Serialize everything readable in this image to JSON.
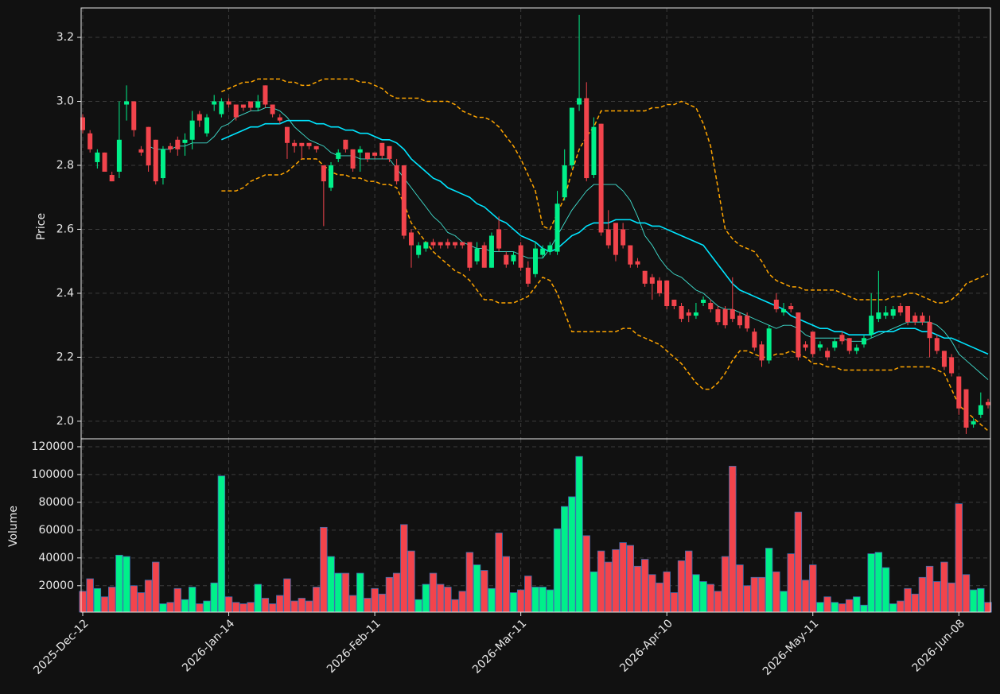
{
  "chart_data": {
    "type": "candlestick",
    "ylabel": "Price",
    "ylim": [
      1.945,
      3.292
    ],
    "yticks": [
      {
        "value": 2,
        "label": "2.0"
      },
      2.2,
      2.4,
      2.6,
      2.8,
      {
        "value": 3,
        "label": "3.0"
      },
      3.2
    ],
    "grid": true,
    "up_color": "#00f08a",
    "down_color": "#f2444c",
    "categories": [
      "2025-Dec-12",
      null,
      null,
      null,
      null,
      null,
      null,
      null,
      null,
      null,
      null,
      null,
      null,
      null,
      null,
      null,
      null,
      null,
      null,
      null,
      "2026-Jan-14",
      null,
      null,
      null,
      null,
      null,
      null,
      null,
      null,
      null,
      null,
      null,
      null,
      null,
      null,
      null,
      null,
      null,
      null,
      null,
      "2026-Feb-11",
      null,
      null,
      null,
      null,
      null,
      null,
      null,
      null,
      null,
      null,
      null,
      null,
      null,
      null,
      null,
      null,
      null,
      null,
      null,
      "2026-Mar-11",
      null,
      null,
      null,
      null,
      null,
      null,
      null,
      null,
      null,
      null,
      null,
      null,
      null,
      null,
      null,
      null,
      null,
      null,
      null,
      "2026-Apr-10",
      null,
      null,
      null,
      null,
      null,
      null,
      null,
      null,
      null,
      null,
      null,
      null,
      null,
      null,
      null,
      null,
      null,
      null,
      null,
      "2026-May-11",
      null,
      null,
      null,
      null,
      null,
      null,
      null,
      null,
      null,
      null,
      null,
      null,
      null,
      null,
      null,
      null,
      null,
      null,
      null,
      "2026-Jun-08",
      null,
      null,
      null,
      null
    ],
    "open": [
      2.95,
      2.9,
      2.81,
      2.84,
      2.77,
      2.78,
      2.99,
      3.0,
      2.85,
      2.92,
      2.88,
      2.76,
      2.86,
      2.88,
      2.87,
      2.88,
      2.96,
      2.9,
      2.99,
      2.96,
      3.0,
      2.99,
      2.99,
      3.0,
      2.98,
      3.05,
      2.99,
      2.95,
      2.92,
      2.87,
      2.87,
      2.87,
      2.86,
      2.8,
      2.73,
      2.82,
      2.88,
      2.85,
      2.84,
      2.84,
      2.84,
      2.87,
      2.86,
      2.8,
      2.8,
      2.59,
      2.52,
      2.54,
      2.56,
      2.56,
      2.56,
      2.56,
      2.56,
      2.56,
      2.5,
      2.55,
      2.48,
      2.6,
      2.52,
      2.5,
      2.55,
      2.48,
      2.46,
      2.52,
      2.53,
      2.53,
      2.7,
      2.8,
      2.99,
      3.01,
      2.77,
      2.93,
      2.6,
      2.62,
      2.6,
      2.55,
      2.5,
      2.47,
      2.45,
      2.44,
      2.44,
      2.38,
      2.36,
      2.34,
      2.33,
      2.37,
      2.37,
      2.35,
      2.35,
      2.35,
      2.33,
      2.33,
      2.28,
      2.24,
      2.19,
      2.38,
      2.34,
      2.36,
      2.34,
      2.24,
      2.28,
      2.23,
      2.22,
      2.23,
      2.27,
      2.26,
      2.22,
      2.24,
      2.27,
      2.32,
      2.33,
      2.33,
      2.36,
      2.36,
      2.33,
      2.33,
      2.31,
      2.26,
      2.22,
      2.2,
      2.14,
      2.1,
      1.99,
      2.02,
      2.06
    ],
    "high": [
      2.96,
      2.91,
      2.85,
      2.84,
      2.78,
      3.0,
      3.05,
      3.0,
      2.86,
      2.92,
      2.88,
      2.86,
      2.87,
      2.89,
      2.9,
      2.97,
      2.97,
      2.96,
      3.02,
      3.01,
      3.01,
      2.99,
      2.99,
      3.0,
      3.02,
      3.05,
      2.99,
      2.96,
      2.92,
      2.88,
      2.87,
      2.87,
      2.86,
      2.8,
      2.81,
      2.85,
      2.88,
      2.85,
      2.86,
      2.84,
      2.84,
      2.87,
      2.86,
      2.82,
      2.8,
      2.6,
      2.56,
      2.56,
      2.57,
      2.56,
      2.57,
      2.56,
      2.56,
      2.56,
      2.56,
      2.56,
      2.59,
      2.64,
      2.53,
      2.53,
      2.56,
      2.5,
      2.56,
      2.55,
      2.56,
      2.72,
      2.85,
      2.98,
      3.27,
      3.06,
      2.95,
      2.93,
      2.66,
      2.62,
      2.62,
      2.55,
      2.51,
      2.47,
      2.46,
      2.45,
      2.44,
      2.38,
      2.37,
      2.35,
      2.37,
      2.39,
      2.38,
      2.36,
      2.36,
      2.45,
      2.34,
      2.34,
      2.29,
      2.25,
      2.3,
      2.4,
      2.37,
      2.37,
      2.34,
      2.25,
      2.28,
      2.25,
      2.23,
      2.26,
      2.28,
      2.26,
      2.24,
      2.27,
      2.4,
      2.47,
      2.36,
      2.36,
      2.37,
      2.36,
      2.34,
      2.34,
      2.33,
      2.27,
      2.22,
      2.21,
      2.14,
      2.1,
      2.01,
      2.09,
      2.07
    ],
    "low": [
      2.9,
      2.84,
      2.79,
      2.78,
      2.75,
      2.76,
      2.94,
      2.89,
      2.83,
      2.78,
      2.74,
      2.74,
      2.84,
      2.83,
      2.83,
      2.85,
      2.92,
      2.89,
      2.97,
      2.95,
      2.98,
      2.94,
      2.97,
      2.97,
      2.97,
      2.98,
      2.95,
      2.93,
      2.82,
      2.84,
      2.82,
      2.85,
      2.84,
      2.61,
      2.72,
      2.81,
      2.84,
      2.78,
      2.78,
      2.81,
      2.82,
      2.82,
      2.81,
      2.74,
      2.57,
      2.48,
      2.51,
      2.53,
      2.54,
      2.54,
      2.54,
      2.54,
      2.54,
      2.47,
      2.49,
      2.48,
      2.48,
      2.53,
      2.48,
      2.49,
      2.47,
      2.42,
      2.45,
      2.51,
      2.52,
      2.52,
      2.69,
      2.79,
      2.97,
      2.75,
      2.76,
      2.58,
      2.54,
      2.5,
      2.54,
      2.48,
      2.48,
      2.42,
      2.38,
      2.39,
      2.35,
      2.35,
      2.31,
      2.31,
      2.32,
      2.36,
      2.34,
      2.3,
      2.29,
      2.31,
      2.29,
      2.28,
      2.22,
      2.17,
      2.18,
      2.34,
      2.33,
      2.34,
      2.19,
      2.22,
      2.2,
      2.22,
      2.19,
      2.22,
      2.24,
      2.21,
      2.21,
      2.23,
      2.26,
      2.31,
      2.32,
      2.32,
      2.33,
      2.3,
      2.3,
      2.3,
      2.2,
      2.21,
      2.16,
      2.14,
      2.02,
      1.96,
      1.98,
      2.01,
      2.04
    ],
    "close": [
      2.91,
      2.85,
      2.84,
      2.78,
      2.75,
      2.88,
      3.0,
      2.91,
      2.84,
      2.8,
      2.75,
      2.85,
      2.85,
      2.85,
      2.88,
      2.94,
      2.94,
      2.95,
      3.0,
      3.0,
      2.99,
      2.95,
      2.98,
      2.98,
      3.0,
      2.99,
      2.96,
      2.94,
      2.87,
      2.86,
      2.86,
      2.86,
      2.85,
      2.75,
      2.8,
      2.84,
      2.85,
      2.79,
      2.85,
      2.82,
      2.83,
      2.83,
      2.82,
      2.75,
      2.58,
      2.55,
      2.55,
      2.56,
      2.55,
      2.55,
      2.55,
      2.55,
      2.55,
      2.48,
      2.54,
      2.48,
      2.58,
      2.54,
      2.49,
      2.52,
      2.48,
      2.43,
      2.54,
      2.54,
      2.55,
      2.68,
      2.8,
      2.98,
      3.01,
      2.76,
      2.92,
      2.59,
      2.55,
      2.52,
      2.55,
      2.49,
      2.49,
      2.43,
      2.43,
      2.4,
      2.36,
      2.36,
      2.32,
      2.33,
      2.34,
      2.38,
      2.35,
      2.31,
      2.3,
      2.32,
      2.3,
      2.29,
      2.23,
      2.19,
      2.29,
      2.35,
      2.35,
      2.35,
      2.2,
      2.23,
      2.21,
      2.24,
      2.2,
      2.25,
      2.25,
      2.22,
      2.23,
      2.26,
      2.33,
      2.34,
      2.34,
      2.35,
      2.34,
      2.31,
      2.31,
      2.31,
      2.26,
      2.22,
      2.17,
      2.15,
      2.04,
      1.98,
      2.0,
      2.05,
      2.05
    ],
    "overlays": [
      {
        "color": "#40e0d0",
        "linestyle": "solid",
        "values": [
          null,
          null,
          null,
          null,
          null,
          null,
          null,
          null,
          null,
          2.86,
          2.85,
          2.85,
          2.85,
          2.86,
          2.86,
          2.87,
          2.87,
          2.87,
          2.89,
          2.92,
          2.93,
          2.95,
          2.96,
          2.97,
          2.97,
          2.98,
          2.98,
          2.97,
          2.95,
          2.92,
          2.9,
          2.88,
          2.87,
          2.86,
          2.84,
          2.83,
          2.83,
          2.83,
          2.82,
          2.82,
          2.82,
          2.82,
          2.82,
          2.79,
          2.76,
          2.73,
          2.7,
          2.67,
          2.64,
          2.62,
          2.59,
          2.58,
          2.56,
          2.55,
          2.54,
          2.54,
          2.53,
          2.53,
          2.53,
          2.53,
          2.52,
          2.51,
          2.51,
          2.51,
          2.54,
          2.58,
          2.62,
          2.66,
          2.69,
          2.72,
          2.74,
          2.74,
          2.74,
          2.74,
          2.72,
          2.69,
          2.64,
          2.58,
          2.55,
          2.51,
          2.48,
          2.46,
          2.45,
          2.43,
          2.41,
          2.4,
          2.38,
          2.36,
          2.35,
          2.35,
          2.34,
          2.33,
          2.32,
          2.31,
          2.3,
          2.29,
          2.3,
          2.3,
          2.29,
          2.27,
          2.26,
          2.26,
          2.26,
          2.26,
          2.26,
          2.25,
          2.25,
          2.25,
          2.26,
          2.27,
          2.28,
          2.29,
          2.3,
          2.31,
          2.31,
          2.31,
          2.31,
          2.3,
          2.28,
          2.25,
          2.21,
          2.19,
          2.17,
          2.15,
          2.13
        ]
      },
      {
        "color": "#00e5ff",
        "linestyle": "solid",
        "values": [
          null,
          null,
          null,
          null,
          null,
          null,
          null,
          null,
          null,
          null,
          null,
          null,
          null,
          null,
          null,
          null,
          null,
          null,
          null,
          2.88,
          2.89,
          2.9,
          2.91,
          2.92,
          2.92,
          2.93,
          2.93,
          2.93,
          2.94,
          2.94,
          2.94,
          2.94,
          2.93,
          2.93,
          2.92,
          2.92,
          2.91,
          2.91,
          2.9,
          2.9,
          2.89,
          2.88,
          2.88,
          2.87,
          2.85,
          2.82,
          2.8,
          2.78,
          2.76,
          2.75,
          2.73,
          2.72,
          2.71,
          2.7,
          2.68,
          2.67,
          2.65,
          2.63,
          2.62,
          2.6,
          2.58,
          2.57,
          2.56,
          2.54,
          2.53,
          2.54,
          2.56,
          2.58,
          2.59,
          2.61,
          2.62,
          2.62,
          2.62,
          2.63,
          2.63,
          2.63,
          2.62,
          2.62,
          2.61,
          2.61,
          2.6,
          2.59,
          2.58,
          2.57,
          2.56,
          2.55,
          2.52,
          2.49,
          2.46,
          2.43,
          2.41,
          2.4,
          2.39,
          2.38,
          2.37,
          2.36,
          2.35,
          2.33,
          2.32,
          2.31,
          2.3,
          2.29,
          2.29,
          2.28,
          2.28,
          2.27,
          2.27,
          2.27,
          2.27,
          2.28,
          2.28,
          2.28,
          2.29,
          2.29,
          2.29,
          2.28,
          2.28,
          2.27,
          2.26,
          2.26,
          2.25,
          2.24,
          2.23,
          2.22,
          2.21
        ]
      },
      {
        "color": "#ffa500",
        "linestyle": "dashed",
        "values": [
          null,
          null,
          null,
          null,
          null,
          null,
          null,
          null,
          null,
          null,
          null,
          null,
          null,
          null,
          null,
          null,
          null,
          null,
          null,
          3.03,
          3.04,
          3.05,
          3.06,
          3.06,
          3.07,
          3.07,
          3.07,
          3.07,
          3.06,
          3.06,
          3.05,
          3.05,
          3.06,
          3.07,
          3.07,
          3.07,
          3.07,
          3.07,
          3.06,
          3.06,
          3.05,
          3.04,
          3.02,
          3.01,
          3.01,
          3.01,
          3.01,
          3.0,
          3.0,
          3.0,
          3.0,
          2.99,
          2.97,
          2.96,
          2.95,
          2.95,
          2.94,
          2.92,
          2.89,
          2.86,
          2.82,
          2.77,
          2.72,
          2.61,
          2.6,
          2.65,
          2.7,
          2.78,
          2.85,
          2.89,
          2.92,
          2.97,
          2.97,
          2.97,
          2.97,
          2.97,
          2.97,
          2.97,
          2.98,
          2.98,
          2.99,
          2.99,
          3.0,
          2.99,
          2.98,
          2.93,
          2.86,
          2.73,
          2.6,
          2.57,
          2.55,
          2.54,
          2.53,
          2.5,
          2.46,
          2.44,
          2.43,
          2.42,
          2.42,
          2.41,
          2.41,
          2.41,
          2.41,
          2.41,
          2.4,
          2.39,
          2.38,
          2.38,
          2.38,
          2.38,
          2.38,
          2.39,
          2.39,
          2.4,
          2.4,
          2.39,
          2.38,
          2.37,
          2.37,
          2.38,
          2.4,
          2.43,
          2.44,
          2.45,
          2.46
        ]
      },
      {
        "color": "#ffa500",
        "linestyle": "dashed",
        "values": [
          null,
          null,
          null,
          null,
          null,
          null,
          null,
          null,
          null,
          null,
          null,
          null,
          null,
          null,
          null,
          null,
          null,
          null,
          null,
          2.72,
          2.72,
          2.72,
          2.73,
          2.75,
          2.76,
          2.77,
          2.77,
          2.77,
          2.78,
          2.8,
          2.82,
          2.82,
          2.82,
          2.8,
          2.78,
          2.77,
          2.77,
          2.76,
          2.76,
          2.75,
          2.75,
          2.74,
          2.74,
          2.73,
          2.68,
          2.62,
          2.59,
          2.56,
          2.53,
          2.51,
          2.49,
          2.47,
          2.46,
          2.44,
          2.41,
          2.38,
          2.38,
          2.37,
          2.37,
          2.37,
          2.38,
          2.39,
          2.42,
          2.45,
          2.44,
          2.4,
          2.34,
          2.28,
          2.28,
          2.28,
          2.28,
          2.28,
          2.28,
          2.28,
          2.29,
          2.29,
          2.27,
          2.26,
          2.25,
          2.24,
          2.22,
          2.2,
          2.18,
          2.15,
          2.12,
          2.1,
          2.1,
          2.12,
          2.15,
          2.19,
          2.22,
          2.22,
          2.21,
          2.2,
          2.2,
          2.21,
          2.21,
          2.22,
          2.21,
          2.2,
          2.18,
          2.18,
          2.17,
          2.17,
          2.16,
          2.16,
          2.16,
          2.16,
          2.16,
          2.16,
          2.16,
          2.16,
          2.17,
          2.17,
          2.17,
          2.17,
          2.17,
          2.16,
          2.15,
          2.1,
          2.05,
          2.03,
          2.01,
          1.99,
          1.97
        ]
      }
    ],
    "volume": {
      "type": "bar",
      "ylabel": "Volume",
      "ylim": [
        1000,
        125700
      ],
      "yticks": [
        20000,
        40000,
        60000,
        80000,
        100000,
        120000
      ],
      "edge_color": "#3f6fb0",
      "values": [
        16000,
        25000,
        18000,
        12000,
        19000,
        42000,
        41000,
        20000,
        15000,
        24000,
        37000,
        7000,
        8000,
        18000,
        10000,
        19000,
        7000,
        9000,
        22000,
        99000,
        12000,
        8000,
        7000,
        8000,
        21000,
        11000,
        7000,
        13000,
        25000,
        9000,
        11000,
        9000,
        19000,
        62000,
        41000,
        29000,
        29000,
        13000,
        29000,
        11000,
        18000,
        14000,
        26000,
        29000,
        64000,
        45000,
        10000,
        21000,
        29000,
        21000,
        19000,
        10000,
        16000,
        44000,
        35000,
        31000,
        18000,
        58000,
        41000,
        15000,
        17000,
        27000,
        19000,
        19000,
        17000,
        61000,
        77000,
        84000,
        113000,
        56000,
        30000,
        45000,
        37000,
        46000,
        51000,
        49000,
        34000,
        39000,
        28000,
        22000,
        30000,
        15000,
        38000,
        45000,
        28000,
        23000,
        21000,
        16000,
        41000,
        106000,
        35000,
        20000,
        26000,
        26000,
        47000,
        30000,
        16000,
        43000,
        73000,
        24000,
        35000,
        8000,
        12000,
        8000,
        7000,
        10000,
        12000,
        6000,
        43000,
        44000,
        33000,
        7000,
        9000,
        18000,
        14000,
        26000,
        34000,
        23000,
        37000,
        22000,
        79000,
        28000,
        17000,
        18000,
        8000
      ]
    }
  }
}
